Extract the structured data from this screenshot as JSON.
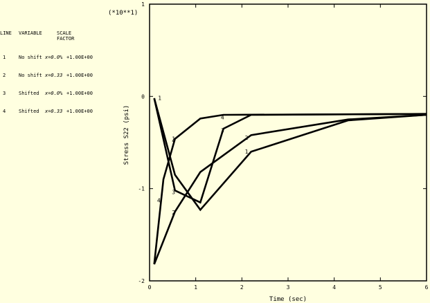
{
  "legend": {
    "headers": {
      "line": "LINE",
      "variable": "VARIABLE",
      "scale": "SCALE",
      "factor": "FACTOR"
    },
    "rows": [
      {
        "line": "1",
        "variable": "No shift",
        "x": "x=0.0%",
        "factor": "+1.00E+00"
      },
      {
        "line": "2",
        "variable": "No shift",
        "x": "x=0.33",
        "factor": "+1.00E+00"
      },
      {
        "line": "3",
        "variable": "Shifted",
        "x": "x=0.0%",
        "factor": "+1.00E+00"
      },
      {
        "line": "4",
        "variable": "Shifted",
        "x": "x=0.33",
        "factor": "+1.00E+00"
      }
    ]
  },
  "chart_data": {
    "type": "line",
    "xlabel": "Time (sec)",
    "ylabel": "Stress S22 (psi)",
    "multiplier": "(*10**1)",
    "xlim": [
      0,
      6
    ],
    "ylim": [
      -2,
      1
    ],
    "x_ticks": [
      "0",
      "1",
      "2",
      "3",
      "4",
      "5",
      "6"
    ],
    "y_ticks": [
      "1",
      "0",
      "-1",
      "-2"
    ],
    "grid": false,
    "series": [
      {
        "label": "1",
        "x": [
          0.1,
          0.55,
          1.1,
          2.2,
          4.3,
          6.0
        ],
        "y": [
          -0.02,
          -0.85,
          -1.23,
          -0.6,
          -0.26,
          -0.2
        ]
      },
      {
        "label": "2",
        "x": [
          0.1,
          0.55,
          1.1,
          2.2,
          4.3,
          6.0
        ],
        "y": [
          -1.82,
          -1.25,
          -0.82,
          -0.42,
          -0.25,
          -0.2
        ]
      },
      {
        "label": "3",
        "x": [
          0.1,
          0.55,
          1.1,
          1.6,
          2.2,
          6.0
        ],
        "y": [
          -0.02,
          -1.02,
          -1.15,
          -0.35,
          -0.2,
          -0.19
        ]
      },
      {
        "label": "4",
        "x": [
          0.1,
          0.3,
          0.55,
          1.1,
          1.6,
          6.0
        ],
        "y": [
          -1.82,
          -0.9,
          -0.46,
          -0.24,
          -0.2,
          -0.19
        ]
      }
    ],
    "series_labels": [
      {
        "text": "1",
        "x": 0.22,
        "y": -0.04
      },
      {
        "text": "1",
        "x": 0.52,
        "y": -0.48
      },
      {
        "text": "1",
        "x": 2.1,
        "y": -0.62
      },
      {
        "text": "2",
        "x": 0.52,
        "y": -1.28
      },
      {
        "text": "2",
        "x": 2.1,
        "y": -0.47
      },
      {
        "text": "3",
        "x": 0.52,
        "y": -1.06
      },
      {
        "text": "3",
        "x": 1.58,
        "y": -0.39
      },
      {
        "text": "4",
        "x": 0.52,
        "y": -0.5
      },
      {
        "text": "4",
        "x": 1.58,
        "y": -0.25
      },
      {
        "text": "4",
        "x": 0.2,
        "y": -1.15
      }
    ]
  }
}
